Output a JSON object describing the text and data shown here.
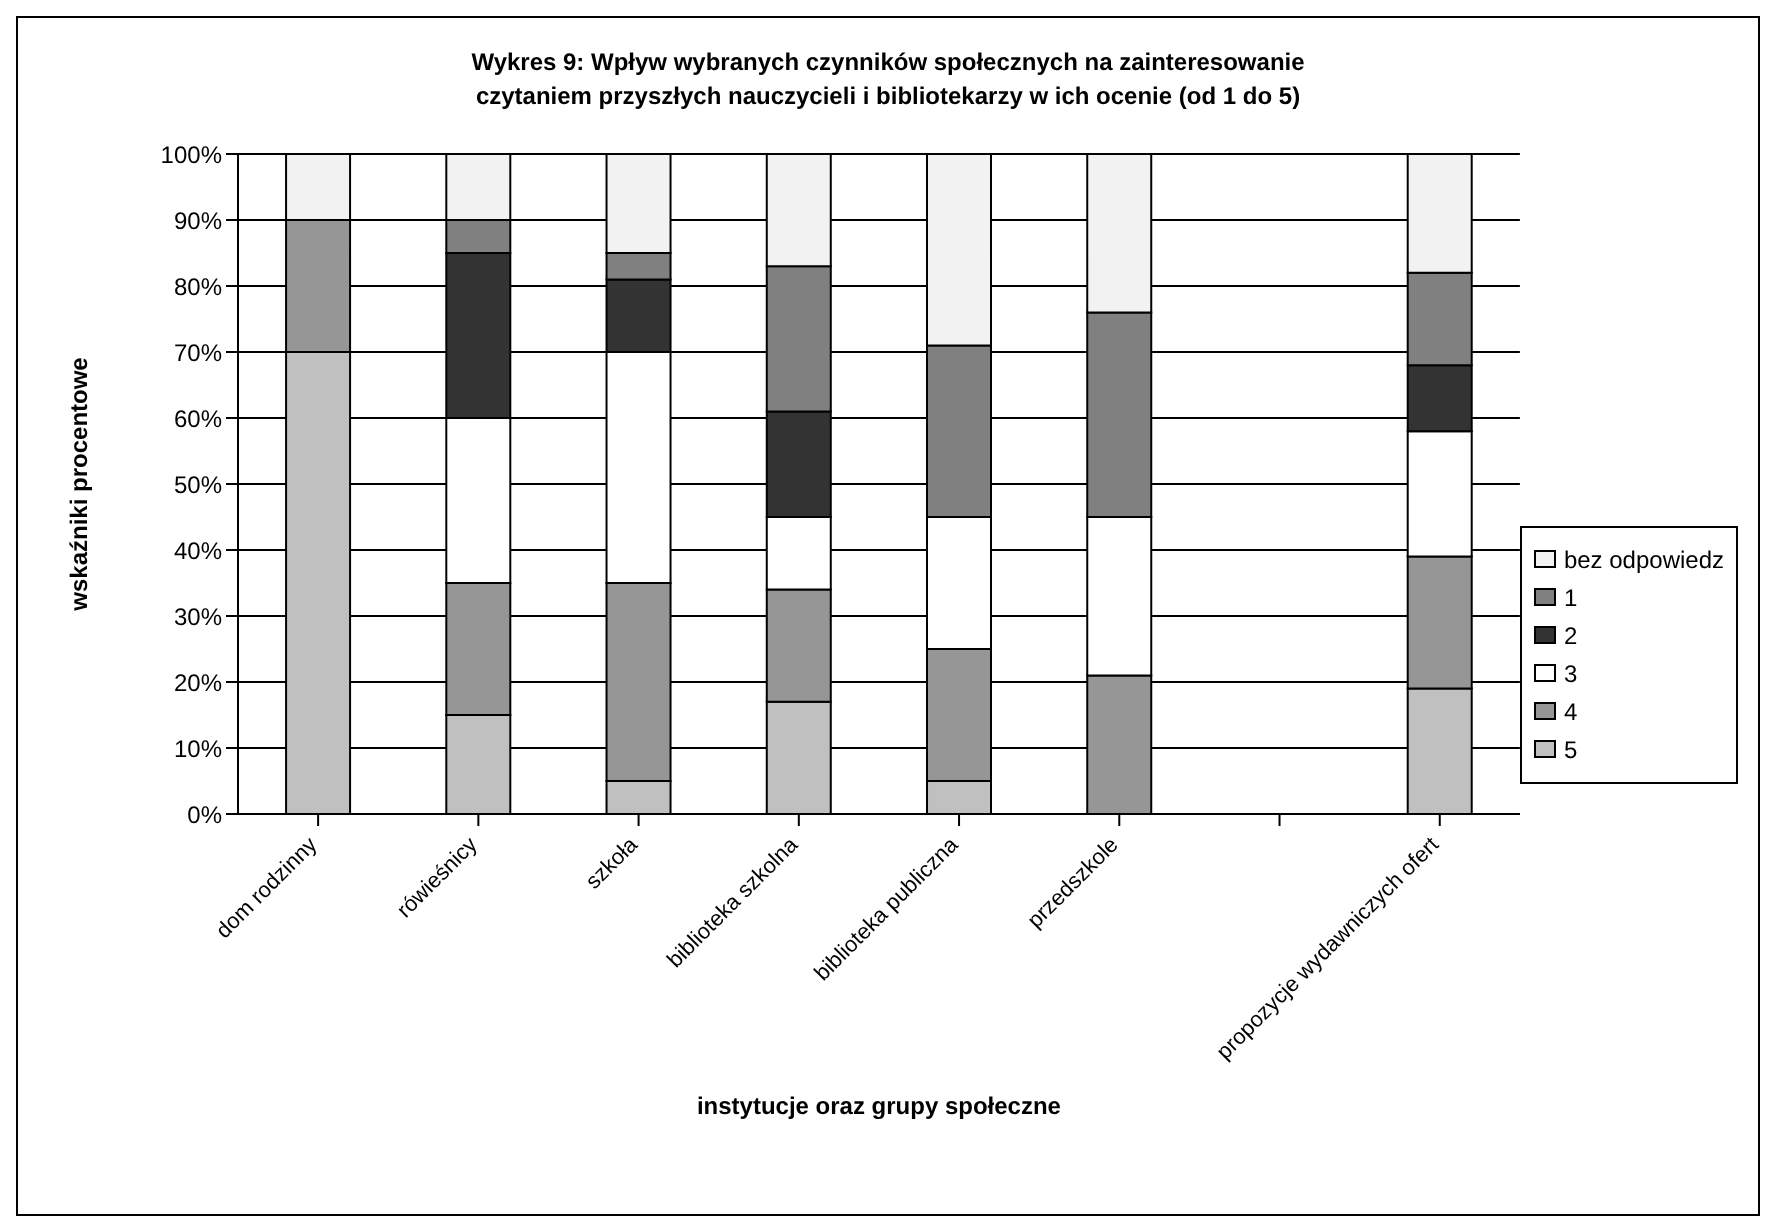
{
  "chart_data": {
    "type": "bar",
    "stacked": true,
    "title": "Wykres 9: Wpływ wybranych czynników społecznych na zainteresowanie czytaniem przyszłych nauczycieli i bibliotekarzy w ich ocenie (od 1 do 5)",
    "xlabel": "instytucje oraz grupy społeczne",
    "ylabel": "wskaźniki procentowe",
    "categories": [
      "dom rodzinny",
      "rówieśnicy",
      "szkoła",
      "biblioteka szkolna",
      "biblioteka publiczna",
      "przedszkole",
      null,
      "propozycje wydawniczych ofert"
    ],
    "series": [
      {
        "name": "5",
        "color": "#c0c0c0",
        "values": [
          70,
          15,
          5,
          17,
          5,
          0,
          null,
          19
        ]
      },
      {
        "name": "4",
        "color": "#969696",
        "values": [
          20,
          20,
          30,
          17,
          20,
          21,
          null,
          20
        ]
      },
      {
        "name": "3",
        "color": "#ffffff",
        "values": [
          0,
          25,
          35,
          11,
          20,
          24,
          null,
          19
        ]
      },
      {
        "name": "2",
        "color": "#333333",
        "values": [
          0,
          25,
          11,
          16,
          0,
          0,
          null,
          10
        ]
      },
      {
        "name": "1",
        "color": "#808080",
        "values": [
          0,
          5,
          4,
          22,
          26,
          31,
          null,
          14
        ]
      },
      {
        "name": "bez odpowiedz",
        "color": "#f2f2f2",
        "values": [
          10,
          10,
          15,
          17,
          29,
          24,
          null,
          18
        ]
      }
    ],
    "ylim": [
      0,
      100
    ],
    "yticks": [
      {
        "value": 0,
        "label": "0%"
      },
      {
        "value": 10,
        "label": "10%"
      },
      {
        "value": 20,
        "label": "20%"
      },
      {
        "value": 30,
        "label": "30%"
      },
      {
        "value": 40,
        "label": "40%"
      },
      {
        "value": 50,
        "label": "50%"
      },
      {
        "value": 60,
        "label": "60%"
      },
      {
        "value": 70,
        "label": "70%"
      },
      {
        "value": 80,
        "label": "80%"
      },
      {
        "value": 90,
        "label": "90%"
      },
      {
        "value": 100,
        "label": "100%"
      }
    ],
    "grid": "y",
    "legend": "right"
  }
}
